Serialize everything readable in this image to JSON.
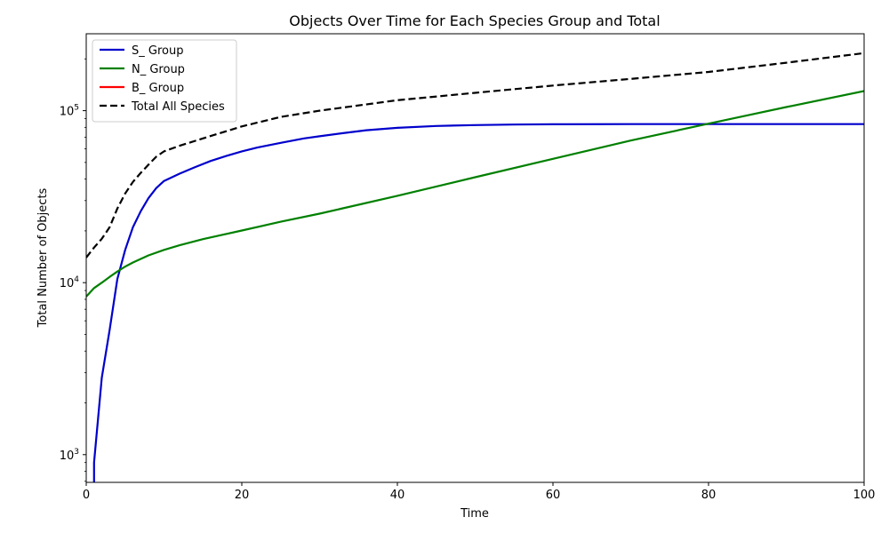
{
  "chart_data": {
    "type": "line",
    "title": "Objects Over Time for Each Species Group and Total",
    "xlabel": "Time",
    "ylabel": "Total Number of Objects",
    "xscale": "linear",
    "yscale": "log",
    "xlim": [
      0,
      100
    ],
    "ylim": [
      690,
      280000
    ],
    "grid": false,
    "legend_position": "upper-left",
    "x_ticks": [
      {
        "value": 0,
        "label": "0"
      },
      {
        "value": 20,
        "label": "20"
      },
      {
        "value": 40,
        "label": "40"
      },
      {
        "value": 60,
        "label": "60"
      },
      {
        "value": 80,
        "label": "80"
      },
      {
        "value": 100,
        "label": "100"
      }
    ],
    "y_ticks": [
      {
        "value": 1000,
        "label": "10",
        "exp": "3"
      },
      {
        "value": 10000,
        "label": "10",
        "exp": "4"
      },
      {
        "value": 100000,
        "label": "10",
        "exp": "5"
      }
    ],
    "series": [
      {
        "name": "S_ Group",
        "color": "#0000cc",
        "dash": "solid",
        "x": [
          1,
          1,
          2,
          3,
          4,
          5,
          6,
          7,
          8,
          9,
          10,
          12,
          14,
          16,
          18,
          20,
          22,
          25,
          28,
          30,
          33,
          36,
          40,
          45,
          50,
          55,
          60,
          70,
          80,
          90,
          100
        ],
        "y": [
          690,
          900,
          2800,
          5300,
          10500,
          15500,
          21000,
          26000,
          31000,
          35500,
          39000,
          43000,
          47000,
          51000,
          54500,
          58000,
          61000,
          65000,
          69000,
          71000,
          74000,
          77000,
          79500,
          81500,
          82500,
          83000,
          83300,
          83500,
          83500,
          83500,
          83500
        ]
      },
      {
        "name": "N_ Group",
        "color": "#008000",
        "dash": "solid",
        "x": [
          0,
          1,
          2,
          3,
          4,
          5,
          6,
          8,
          10,
          12,
          15,
          20,
          25,
          30,
          40,
          50,
          60,
          70,
          80,
          90,
          100
        ],
        "y": [
          8300,
          9300,
          10000,
          10800,
          11600,
          12400,
          13100,
          14400,
          15500,
          16500,
          17900,
          20100,
          22600,
          25200,
          32000,
          41000,
          52500,
          67000,
          84000,
          105000,
          130000
        ]
      },
      {
        "name": "B_ Group",
        "color": "#ff0000",
        "dash": "solid",
        "x": [],
        "y": []
      },
      {
        "name": "Total All Species",
        "color": "#000000",
        "dash": "dashed",
        "x": [
          0,
          1,
          2,
          3,
          4,
          5,
          6,
          7,
          8,
          9,
          10,
          12,
          15,
          20,
          25,
          30,
          40,
          50,
          60,
          70,
          80,
          90,
          100
        ],
        "y": [
          14000,
          16000,
          18000,
          21000,
          27000,
          33000,
          38500,
          43500,
          48500,
          54000,
          58000,
          62500,
          69000,
          81000,
          92000,
          100000,
          115000,
          127000,
          140000,
          153000,
          168000,
          190000,
          216000
        ]
      }
    ]
  }
}
